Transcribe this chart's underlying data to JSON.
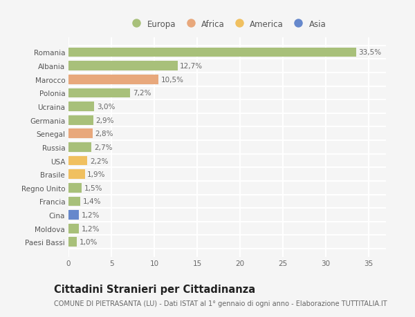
{
  "countries": [
    "Romania",
    "Albania",
    "Marocco",
    "Polonia",
    "Ucraina",
    "Germania",
    "Senegal",
    "Russia",
    "USA",
    "Brasile",
    "Regno Unito",
    "Francia",
    "Cina",
    "Moldova",
    "Paesi Bassi"
  ],
  "values": [
    33.5,
    12.7,
    10.5,
    7.2,
    3.0,
    2.9,
    2.8,
    2.7,
    2.2,
    1.9,
    1.5,
    1.4,
    1.2,
    1.2,
    1.0
  ],
  "labels": [
    "33,5%",
    "12,7%",
    "10,5%",
    "7,2%",
    "3,0%",
    "2,9%",
    "2,8%",
    "2,7%",
    "2,2%",
    "1,9%",
    "1,5%",
    "1,4%",
    "1,2%",
    "1,2%",
    "1,0%"
  ],
  "colors": [
    "#a8c07a",
    "#a8c07a",
    "#e8a87c",
    "#a8c07a",
    "#a8c07a",
    "#a8c07a",
    "#e8a87c",
    "#a8c07a",
    "#f0c060",
    "#f0c060",
    "#a8c07a",
    "#a8c07a",
    "#6688cc",
    "#a8c07a",
    "#a8c07a"
  ],
  "legend_labels": [
    "Europa",
    "Africa",
    "America",
    "Asia"
  ],
  "legend_colors": [
    "#a8c07a",
    "#e8a87c",
    "#f0c060",
    "#6688cc"
  ],
  "xlim": [
    0,
    37
  ],
  "xticks": [
    0,
    5,
    10,
    15,
    20,
    25,
    30,
    35
  ],
  "title": "Cittadini Stranieri per Cittadinanza",
  "subtitle": "COMUNE DI PIETRASANTA (LU) - Dati ISTAT al 1° gennaio di ogni anno - Elaborazione TUTTITALIA.IT",
  "bg_color": "#f5f5f5",
  "plot_bg_color": "#f5f5f5",
  "grid_color": "#ffffff",
  "bar_height": 0.7,
  "label_fontsize": 7.5,
  "tick_fontsize": 7.5,
  "title_fontsize": 10.5,
  "subtitle_fontsize": 7.0,
  "legend_fontsize": 8.5
}
